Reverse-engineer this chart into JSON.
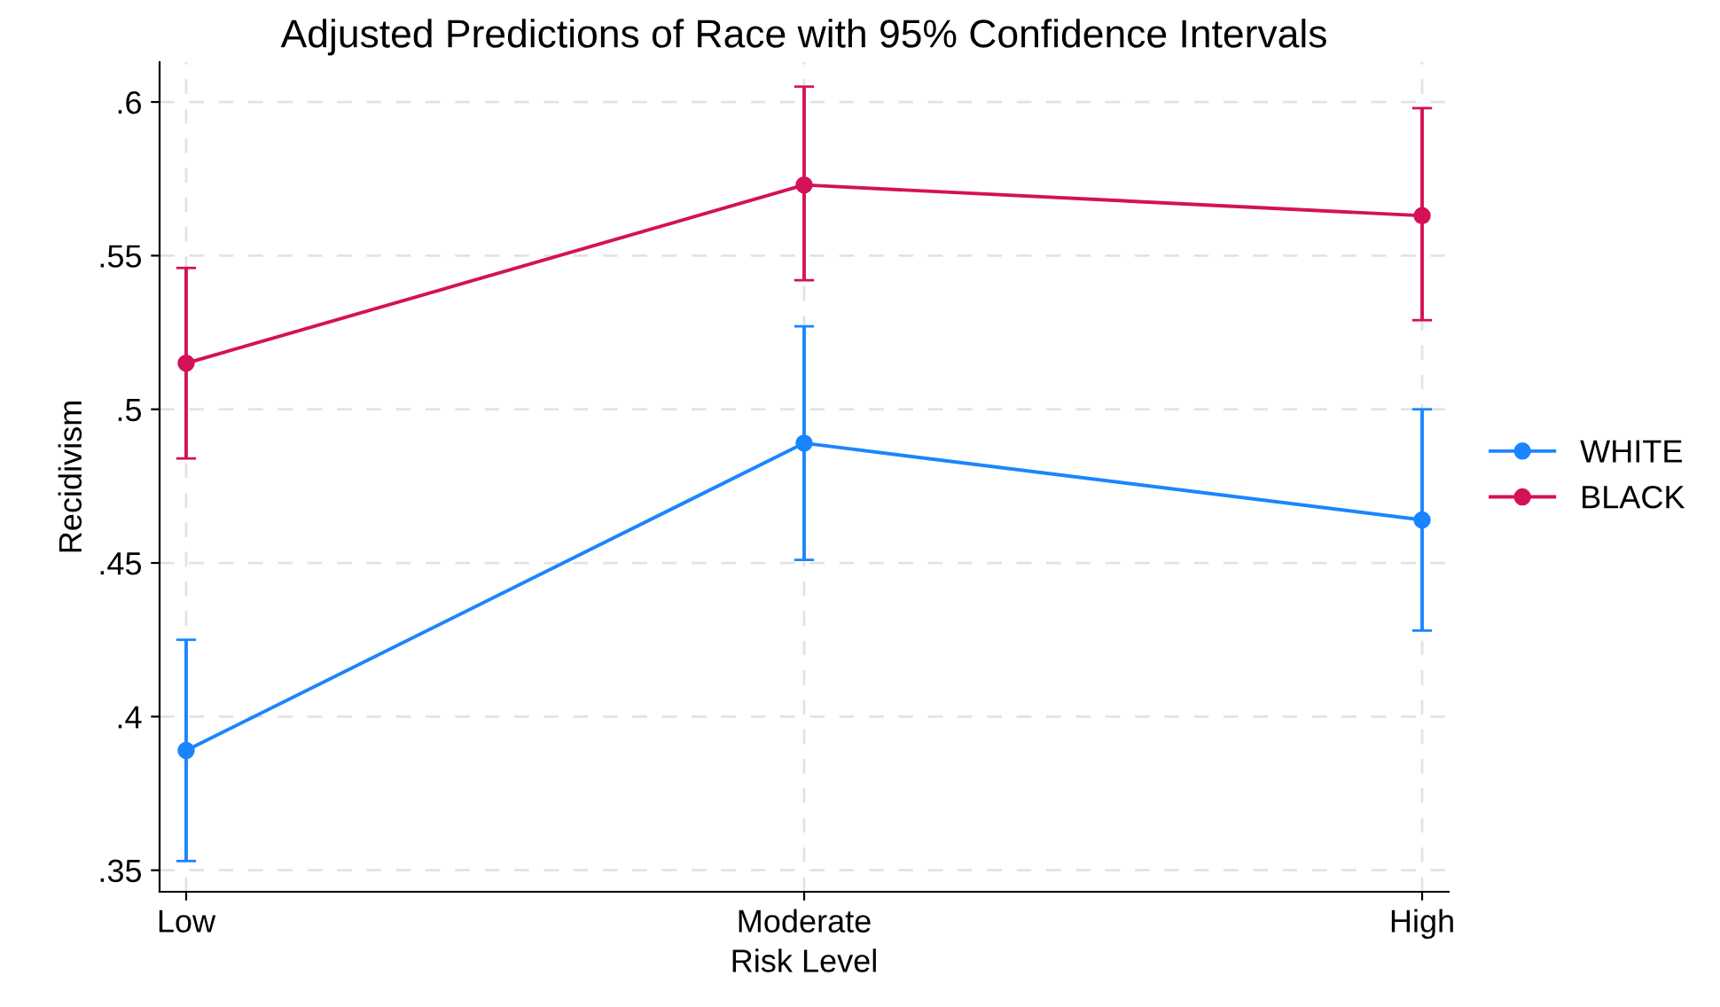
{
  "chart_data": {
    "type": "line",
    "title": "Adjusted Predictions of Race with 95% Confidence Intervals",
    "xlabel": "Risk Level",
    "ylabel": "Recidivism",
    "categories": [
      "Low",
      "Moderate",
      "High"
    ],
    "series": [
      {
        "name": "WHITE",
        "color": "#1a85ff",
        "values": [
          0.389,
          0.489,
          0.464
        ],
        "errors": [
          [
            0.353,
            0.425
          ],
          [
            0.451,
            0.527
          ],
          [
            0.428,
            0.5
          ]
        ]
      },
      {
        "name": "BLACK",
        "color": "#d41159",
        "values": [
          0.515,
          0.573,
          0.563
        ],
        "errors": [
          [
            0.484,
            0.546
          ],
          [
            0.542,
            0.605
          ],
          [
            0.529,
            0.598
          ]
        ]
      }
    ],
    "ylim": [
      0.343,
      0.613
    ],
    "yticks": [
      {
        "value": 0.35,
        "label": ".35"
      },
      {
        "value": 0.4,
        "label": ".4"
      },
      {
        "value": 0.45,
        "label": ".45"
      },
      {
        "value": 0.5,
        "label": ".5"
      },
      {
        "value": 0.55,
        "label": ".55"
      },
      {
        "value": 0.6,
        "label": ".6"
      }
    ],
    "grid": true,
    "legend": "right",
    "marker": "circle",
    "line_style": "solid"
  }
}
